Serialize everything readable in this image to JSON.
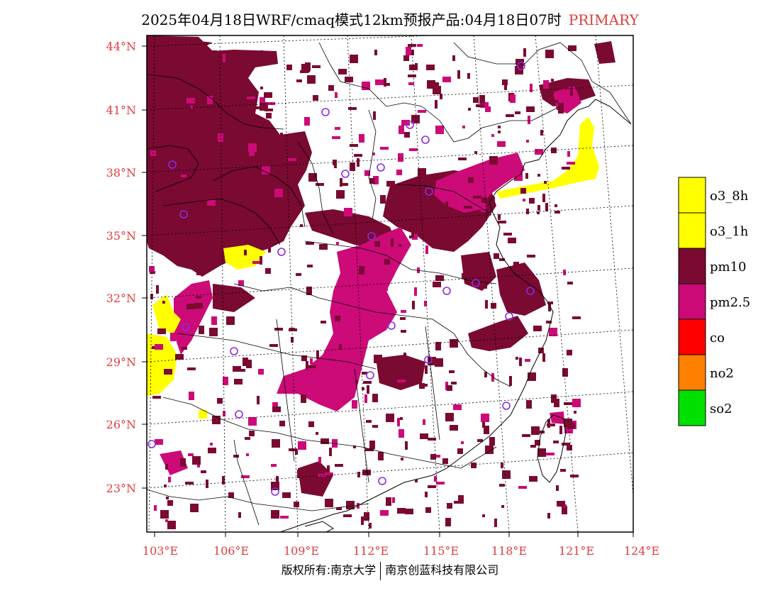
{
  "title": {
    "main": "2025年04月18日WRF/cmaq模式12km预报产品:04月18日07时",
    "tag": "PRIMARY"
  },
  "axes": {
    "lat_labels": [
      "44°N",
      "41°N",
      "38°N",
      "35°N",
      "32°N",
      "29°N",
      "26°N",
      "23°N"
    ],
    "lon_labels": [
      "103°E",
      "106°E",
      "109°E",
      "112°E",
      "115°E",
      "118°E",
      "121°E",
      "124°E"
    ]
  },
  "legend": [
    {
      "label": "o3_8h",
      "color": "#ffff00"
    },
    {
      "label": "o3_1h",
      "color": "#ffff00"
    },
    {
      "label": "pm10",
      "color": "#7a0a32"
    },
    {
      "label": "pm2.5",
      "color": "#cc0a78"
    },
    {
      "label": "co",
      "color": "#ff0000"
    },
    {
      "label": "no2",
      "color": "#ff7f00"
    },
    {
      "label": "so2",
      "color": "#00e000"
    }
  ],
  "colors": {
    "pm10": "#7a0a32",
    "pm25": "#cc0a78",
    "o3": "#ffff00",
    "station": "#8a2be2",
    "axis_label": "#e03c3c"
  },
  "footer": {
    "left": "版权所有:南京大学",
    "right": "南京创蓝科技有限公司"
  }
}
